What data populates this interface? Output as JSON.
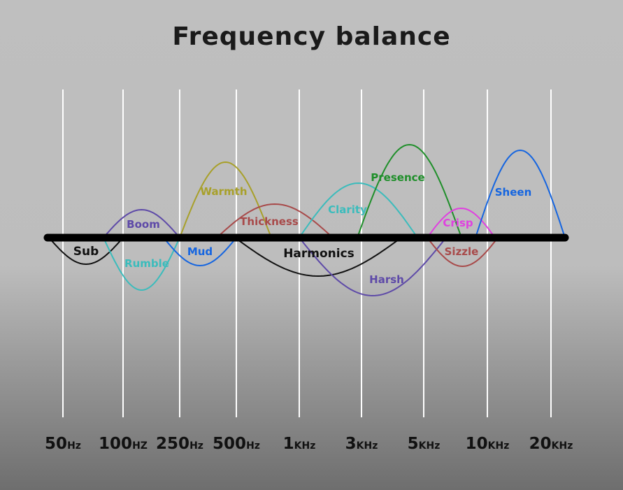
{
  "title": "Frequency balance",
  "frequency_ticks": [
    {
      "value": "50",
      "unit": "Hz"
    },
    {
      "value": "100",
      "unit": "HZ"
    },
    {
      "value": "250",
      "unit": "Hz"
    },
    {
      "value": "500",
      "unit": "Hz"
    },
    {
      "value": "1",
      "unit": "KHz"
    },
    {
      "value": "3",
      "unit": "KHz"
    },
    {
      "value": "5",
      "unit": "KHz"
    },
    {
      "value": "10",
      "unit": "KHz"
    },
    {
      "value": "20",
      "unit": "KHz"
    }
  ],
  "bands": [
    {
      "label": "Sub",
      "color": "#111111",
      "side": "below"
    },
    {
      "label": "Boom",
      "color": "#5e4aa8",
      "side": "above"
    },
    {
      "label": "Rumble",
      "color": "#3bbcbc",
      "side": "below"
    },
    {
      "label": "Warmth",
      "color": "#a8a02a",
      "side": "above"
    },
    {
      "label": "Mud",
      "color": "#1565e0",
      "side": "below"
    },
    {
      "label": "Thickness",
      "color": "#a84a4a",
      "side": "above"
    },
    {
      "label": "Harmonics",
      "color": "#111111",
      "side": "below"
    },
    {
      "label": "Clarity",
      "color": "#3bbcbc",
      "side": "above"
    },
    {
      "label": "Harsh",
      "color": "#5e4aa8",
      "side": "below"
    },
    {
      "label": "Presence",
      "color": "#1f8f2a",
      "side": "above"
    },
    {
      "label": "Crisp",
      "color": "#e040e0",
      "side": "above"
    },
    {
      "label": "Sizzle",
      "color": "#a84a4a",
      "side": "below"
    },
    {
      "label": "Sheen",
      "color": "#1565e0",
      "side": "above"
    }
  ],
  "colors": {
    "baseline": "#000000",
    "gridline": "#ffffff"
  }
}
